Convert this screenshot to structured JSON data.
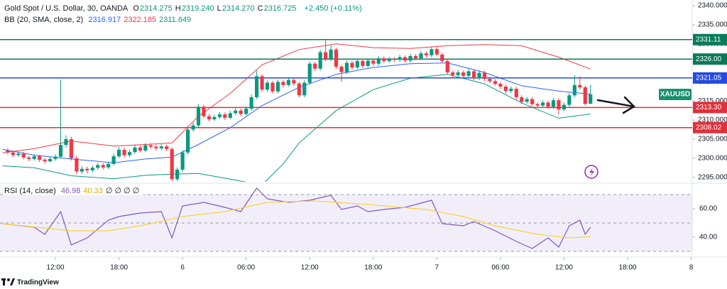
{
  "header": {
    "title": "Gold Spot / U.S. Dollar, 30, OANDA",
    "value_color": "#089981",
    "ohlc": [
      {
        "key": "O",
        "value": "2314.275"
      },
      {
        "key": "H",
        "value": "2319.240"
      },
      {
        "key": "L",
        "value": "2314.270"
      },
      {
        "key": "C",
        "value": "2316.725"
      }
    ],
    "change": "+2.450 (+0.11%)",
    "indicator": {
      "name": "BB (20, SMA, close, 2)",
      "values": [
        {
          "text": "2316.917",
          "color": "#2962ff"
        },
        {
          "text": "2322.185",
          "color": "#f23645"
        },
        {
          "text": "2311.649",
          "color": "#089981"
        }
      ]
    },
    "rsi_legend": {
      "name": "RSI (14, close)",
      "values": [
        {
          "text": "46.98",
          "color": "#7e57c2"
        },
        {
          "text": "40.33",
          "color": "#d4b106"
        },
        {
          "text": "∅ ∅ ∅ ∅",
          "color": "#131722"
        }
      ]
    },
    "brand": "TradingView"
  },
  "chart_data": [
    {
      "type": "candlestick",
      "up_color": "#089981",
      "down_color": "#f23645",
      "xlim": [
        -1.46,
        129.2
      ],
      "ylim": [
        2294,
        2341.5
      ],
      "xticks": [
        {
          "value": 9,
          "label": "12:00"
        },
        {
          "value": 21,
          "label": "18:00"
        },
        {
          "value": 33,
          "label": "6"
        },
        {
          "value": 45,
          "label": "06:00"
        },
        {
          "value": 57,
          "label": "12:00"
        },
        {
          "value": 69,
          "label": "18:00"
        },
        {
          "value": 81,
          "label": "7"
        },
        {
          "value": 93,
          "label": "06:00"
        },
        {
          "value": 105,
          "label": "12:00"
        },
        {
          "value": 117,
          "label": "18:00"
        },
        {
          "value": 129,
          "label": "8"
        }
      ],
      "yticks": [
        {
          "value": 2295,
          "label": "2295.000"
        },
        {
          "value": 2300,
          "label": "2300.000"
        },
        {
          "value": 2305,
          "label": "2305.000"
        },
        {
          "value": 2310,
          "label": "2310.000"
        },
        {
          "value": 2315,
          "label": "2315.000"
        },
        {
          "value": 2320,
          "label": "2320.000"
        },
        {
          "value": 2325,
          "label": "2325.000"
        },
        {
          "value": 2330,
          "label": "2330.000"
        },
        {
          "value": 2335,
          "label": "2335.000"
        },
        {
          "value": 2340,
          "label": "2340.000"
        }
      ],
      "open": [
        2302.0,
        2301.5,
        2300.8,
        2301.2,
        2300.2,
        2299.8,
        2300.5,
        2299.6,
        2299.2,
        2299.8,
        2300.4,
        2303.5,
        2305.0,
        2300.0,
        2296.5,
        2297.2,
        2296.8,
        2297.5,
        2298.2,
        2297.6,
        2298.5,
        2300.5,
        2302.2,
        2300.8,
        2301.6,
        2302.8,
        2302.0,
        2303.4,
        2303.0,
        2302.6,
        2303.1,
        2302.4,
        2294.5,
        2297.0,
        2301.5,
        2307.5,
        2308.6,
        2313.5,
        2311.0,
        2310.2,
        2310.8,
        2311.5,
        2310.6,
        2311.8,
        2312.5,
        2311.6,
        2313.0,
        2316.0,
        2321.5,
        2318.0,
        2319.8,
        2317.5,
        2320.0,
        2319.2,
        2320.5,
        2319.6,
        2316.5,
        2319.8,
        2324.8,
        2323.5,
        2327.8,
        2326.0,
        2328.5,
        2324.0,
        2322.6,
        2325.0,
        2323.8,
        2325.5,
        2324.2,
        2325.6,
        2324.8,
        2326.2,
        2325.5,
        2326.0,
        2325.8,
        2326.5,
        2325.6,
        2326.8,
        2326.2,
        2327.5,
        2327.0,
        2328.6,
        2327.2,
        2325.5,
        2322.5,
        2321.8,
        2322.5,
        2321.6,
        2322.8,
        2321.0,
        2322.4,
        2320.8,
        2320.2,
        2319.5,
        2318.8,
        2317.6,
        2318.2,
        2316.0,
        2314.8,
        2315.5,
        2314.2,
        2313.8,
        2314.6,
        2313.5,
        2315.2,
        2312.8,
        2314.0,
        2316.5,
        2319.2,
        2318.6,
        2314.275
      ],
      "high": [
        2302.6,
        2302.0,
        2301.8,
        2301.6,
        2300.6,
        2301.0,
        2300.9,
        2300.1,
        2300.3,
        2301.0,
        2320.6,
        2306.0,
        2305.6,
        2300.6,
        2297.9,
        2297.8,
        2298.1,
        2298.8,
        2298.7,
        2299.1,
        2301.2,
        2302.9,
        2302.7,
        2302.2,
        2303.5,
        2303.3,
        2304.0,
        2303.9,
        2303.5,
        2303.7,
        2303.6,
        2302.9,
        2297.6,
        2302.1,
        2308.2,
        2309.3,
        2314.2,
        2314.0,
        2311.6,
        2311.4,
        2312.1,
        2312.0,
        2312.4,
        2313.1,
        2313.0,
        2313.6,
        2316.7,
        2323.0,
        2322.0,
        2320.4,
        2320.3,
        2320.6,
        2320.5,
        2321.1,
        2321.0,
        2320.1,
        2320.4,
        2325.4,
        2325.3,
        2328.4,
        2331.0,
        2329.6,
        2329.0,
        2324.5,
        2325.6,
        2325.5,
        2326.1,
        2326.0,
        2326.2,
        2326.1,
        2326.8,
        2326.7,
        2326.6,
        2326.5,
        2327.1,
        2327.0,
        2327.4,
        2327.3,
        2328.1,
        2328.0,
        2329.2,
        2329.1,
        2327.7,
        2326.0,
        2323.0,
        2323.1,
        2323.0,
        2323.4,
        2323.3,
        2323.0,
        2322.9,
        2321.3,
        2320.7,
        2320.0,
        2319.3,
        2318.8,
        2318.7,
        2316.5,
        2316.1,
        2316.0,
        2314.7,
        2315.2,
        2315.1,
        2315.8,
        2315.7,
        2314.6,
        2317.1,
        2321.8,
        2321.5,
        2319.1,
        2319.24
      ],
      "low": [
        2301.0,
        2300.3,
        2300.4,
        2299.7,
        2299.2,
        2299.4,
        2299.0,
        2298.6,
        2298.9,
        2299.3,
        2300.0,
        2302.8,
        2299.4,
        2295.8,
        2295.9,
        2296.0,
        2296.3,
        2297.0,
        2297.0,
        2297.2,
        2298.1,
        2300.0,
        2300.2,
        2300.3,
        2301.2,
        2301.5,
        2301.6,
        2302.5,
        2302.0,
        2302.2,
        2301.9,
        2294.0,
        2294.0,
        2296.5,
        2301.0,
        2307.0,
        2308.1,
        2310.5,
        2309.6,
        2309.8,
        2310.3,
        2310.0,
        2310.2,
        2311.3,
        2311.0,
        2311.2,
        2312.5,
        2315.5,
        2317.4,
        2317.5,
        2317.0,
        2317.0,
        2318.6,
        2318.8,
        2319.0,
        2315.9,
        2316.0,
        2319.3,
        2322.9,
        2323.0,
        2325.4,
        2325.5,
        2323.4,
        2320.0,
        2322.1,
        2323.2,
        2323.3,
        2323.6,
        2323.8,
        2324.2,
        2324.3,
        2325.0,
        2325.0,
        2325.2,
        2325.3,
        2325.0,
        2325.1,
        2325.7,
        2325.8,
        2326.4,
        2326.5,
        2326.7,
        2324.9,
        2322.0,
        2321.2,
        2321.3,
        2321.0,
        2321.1,
        2320.5,
        2320.5,
        2320.2,
        2319.7,
        2319.0,
        2318.2,
        2317.0,
        2317.1,
        2315.4,
        2314.2,
        2314.3,
        2313.6,
        2313.2,
        2313.3,
        2312.9,
        2313.0,
        2311.5,
        2312.3,
        2313.5,
        2316.0,
        2318.0,
        2313.8,
        2314.27
      ],
      "close": [
        2301.5,
        2300.8,
        2301.2,
        2300.2,
        2299.8,
        2300.5,
        2299.6,
        2299.2,
        2299.8,
        2300.4,
        2303.5,
        2305.0,
        2300.0,
        2296.5,
        2297.2,
        2296.8,
        2297.5,
        2298.2,
        2297.6,
        2298.5,
        2300.5,
        2302.2,
        2300.8,
        2301.6,
        2302.8,
        2302.0,
        2303.4,
        2303.0,
        2302.6,
        2303.1,
        2302.4,
        2294.5,
        2297.0,
        2301.5,
        2307.5,
        2308.6,
        2313.5,
        2311.0,
        2310.2,
        2310.8,
        2311.5,
        2310.6,
        2311.8,
        2312.5,
        2311.6,
        2313.0,
        2316.0,
        2321.5,
        2318.0,
        2319.8,
        2317.5,
        2320.0,
        2319.2,
        2320.5,
        2319.6,
        2316.5,
        2319.8,
        2324.8,
        2323.5,
        2327.8,
        2326.0,
        2328.5,
        2324.0,
        2322.6,
        2325.0,
        2323.8,
        2325.5,
        2324.2,
        2325.6,
        2324.8,
        2326.2,
        2325.5,
        2326.0,
        2325.8,
        2326.5,
        2325.6,
        2326.8,
        2326.2,
        2327.5,
        2327.0,
        2328.6,
        2327.2,
        2325.5,
        2322.5,
        2321.8,
        2322.5,
        2321.6,
        2322.8,
        2321.0,
        2322.4,
        2320.8,
        2320.2,
        2319.5,
        2318.8,
        2317.6,
        2318.2,
        2316.0,
        2314.8,
        2315.5,
        2314.2,
        2313.8,
        2314.6,
        2313.5,
        2315.2,
        2312.8,
        2314.0,
        2316.5,
        2319.2,
        2318.6,
        2314.275,
        2316.725
      ],
      "bands": [
        {
          "color": "#f23645",
          "x": [
            -1,
            5,
            12,
            20,
            26,
            31,
            36,
            42,
            48,
            55,
            62,
            69,
            76,
            83,
            90,
            97,
            104,
            110
          ],
          "values": [
            2301.4,
            2302.5,
            2304.5,
            2303.2,
            2303.6,
            2304.0,
            2311.0,
            2317.0,
            2324.5,
            2328.5,
            2330.0,
            2329.0,
            2328.8,
            2329.5,
            2329.8,
            2329.5,
            2326.5,
            2323.4
          ]
        },
        {
          "color": "#2962ff",
          "x": [
            -1,
            5,
            12,
            20,
            26,
            31,
            36,
            42,
            48,
            55,
            62,
            69,
            76,
            83,
            90,
            97,
            104,
            110
          ],
          "values": [
            2302.3,
            2300.8,
            2299.8,
            2298.8,
            2299.8,
            2300.3,
            2303.6,
            2308.0,
            2313.8,
            2318.6,
            2322.0,
            2323.8,
            2324.8,
            2325.0,
            2322.5,
            2319.0,
            2317.6,
            2316.8
          ]
        },
        {
          "color": "#089981",
          "x": [
            -1,
            5,
            12,
            20,
            26,
            31,
            36,
            42,
            48,
            52,
            55,
            62,
            69,
            76,
            83,
            90,
            97,
            104,
            110
          ],
          "values": [
            2298.0,
            2297.5,
            2295.4,
            2294.6,
            2295.5,
            2295.8,
            2296.0,
            2294.5,
            2293.0,
            2298.5,
            2304.0,
            2312.5,
            2318.0,
            2321.0,
            2322.0,
            2319.5,
            2314.5,
            2310.5,
            2311.6
          ]
        }
      ],
      "levels": [
        {
          "value": 2331.11,
          "label": "2331.11",
          "color": "#0b7a5a"
        },
        {
          "value": 2326.0,
          "label": "2326.00",
          "color": "#0b7a5a"
        },
        {
          "value": 2321.05,
          "label": "2321.05",
          "color": "#2549e0"
        },
        {
          "value": 2313.3,
          "label": "2313.30",
          "color": "#e0303a"
        },
        {
          "value": 2308.02,
          "label": "2308.02",
          "color": "#e0303a"
        }
      ],
      "price_tag": {
        "label": "XAUUSD",
        "value": 2316.725,
        "color": "#16906e"
      }
    },
    {
      "type": "line",
      "xlim": [
        -1.46,
        129.2
      ],
      "ylim": [
        27,
        76
      ],
      "yticks": [
        {
          "value": 40,
          "label": "40.00"
        },
        {
          "value": 60,
          "label": "60.00"
        }
      ],
      "band": [
        70,
        30
      ],
      "band_lines": [
        70,
        50,
        30
      ],
      "series": [
        {
          "name": "RSI",
          "color": "#7e57c2",
          "x": [
            -1,
            5,
            7,
            10,
            12,
            15,
            19,
            21,
            25,
            29,
            31,
            33,
            37,
            41,
            44,
            47,
            49,
            53,
            57,
            61,
            63,
            66,
            68,
            71,
            75,
            80,
            82,
            86,
            88,
            92,
            96,
            99,
            102,
            104,
            106,
            108,
            109,
            110
          ],
          "values": [
            49.5,
            47,
            42,
            58,
            34.5,
            39.5,
            52,
            54.5,
            57,
            58,
            39.5,
            62,
            64.5,
            61,
            58,
            74.5,
            67,
            64.5,
            66,
            69.5,
            59.5,
            62,
            58,
            59.5,
            61,
            66,
            49.5,
            48,
            51,
            44.5,
            37,
            32,
            39.5,
            33,
            48,
            52,
            42,
            46.98
          ]
        },
        {
          "name": "RSI-based MA",
          "color": "#f5d33a",
          "x": [
            -1,
            12,
            19,
            25,
            33,
            41,
            49,
            58,
            68,
            79,
            86,
            92,
            100,
            106,
            110
          ],
          "values": [
            49.5,
            44.5,
            44.5,
            48,
            54.5,
            58,
            64.5,
            65.5,
            63,
            59.5,
            54.5,
            48,
            42,
            39.5,
            40.33
          ]
        }
      ]
    }
  ]
}
